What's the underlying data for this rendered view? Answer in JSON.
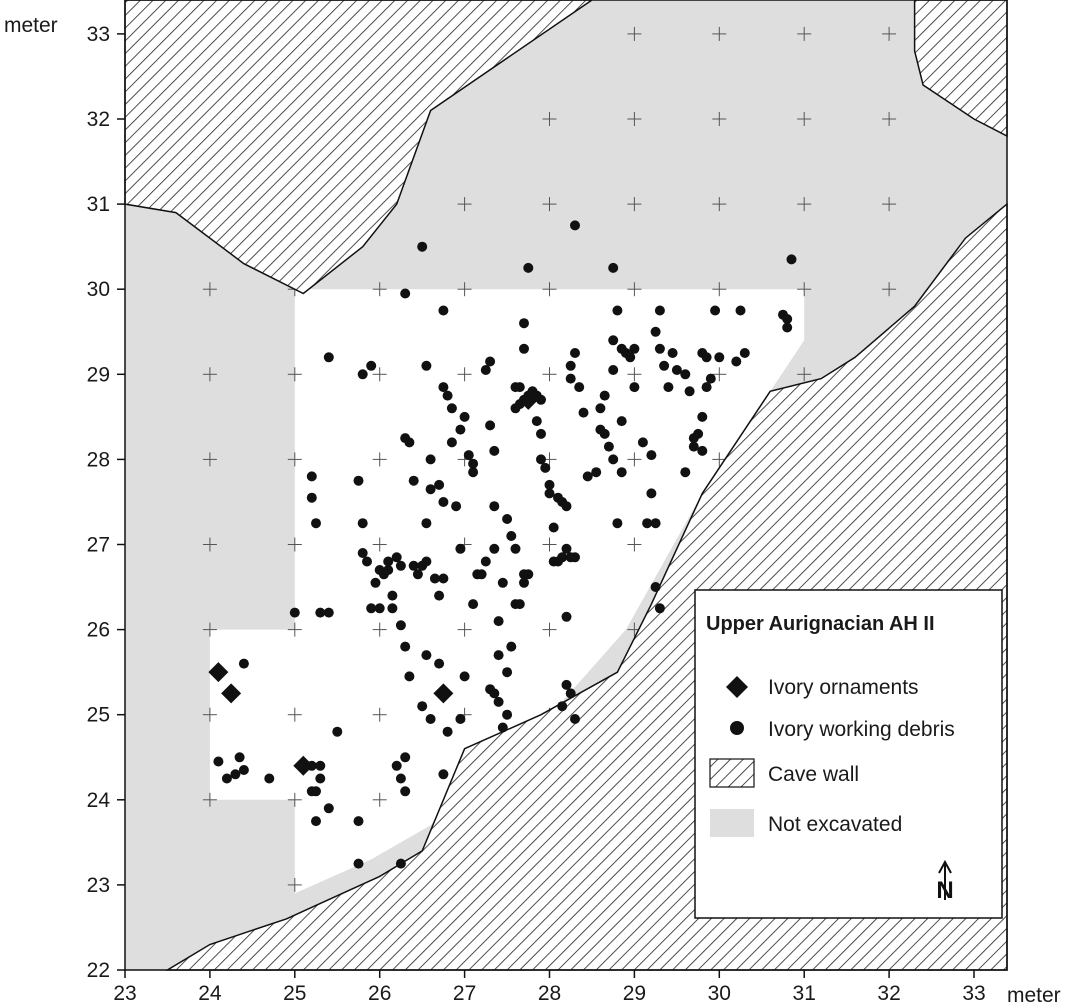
{
  "axes": {
    "x_unit": "meter",
    "y_unit": "meter",
    "x_ticks": [
      "23",
      "24",
      "25",
      "26",
      "27",
      "28",
      "29",
      "30",
      "31",
      "32",
      "33"
    ],
    "y_ticks": [
      "22",
      "23",
      "24",
      "25",
      "26",
      "27",
      "28",
      "29",
      "30",
      "31",
      "32",
      "33"
    ],
    "x_range": [
      23,
      33.4
    ],
    "y_range": [
      22,
      33.4
    ]
  },
  "legend": {
    "title": "Upper Aurignacian AH II",
    "items": [
      {
        "label": "Ivory ornaments",
        "symbol": "diamond"
      },
      {
        "label": "Ivory working debris",
        "symbol": "circle"
      },
      {
        "label": "Cave wall",
        "symbol": "hatch"
      },
      {
        "label": "Not excavated",
        "symbol": "gray"
      }
    ],
    "placement": "bottom-right"
  },
  "north_arrow": {
    "label": "N"
  },
  "colors": {
    "not_excavated": "#dedede",
    "excavated": "#ffffff",
    "symbols": "#111111",
    "hatch": "#222222"
  },
  "areas": {
    "excavated": [
      [
        25,
        30
      ],
      [
        31,
        30
      ],
      [
        31,
        29.4
      ],
      [
        29.8,
        27.6
      ],
      [
        28.9,
        26
      ],
      [
        28.1,
        25.1
      ],
      [
        27.2,
        24.5
      ],
      [
        26.6,
        23.7
      ],
      [
        25.9,
        23.3
      ],
      [
        25,
        22.9
      ],
      [
        25,
        24
      ],
      [
        24,
        24
      ],
      [
        24,
        26
      ],
      [
        25,
        26
      ]
    ],
    "cave_wall_north": [
      [
        23,
        33.4
      ],
      [
        28.5,
        33.4
      ],
      [
        26.6,
        32.1
      ],
      [
        26.2,
        31.0
      ],
      [
        25.8,
        30.5
      ],
      [
        25.1,
        29.95
      ],
      [
        24.4,
        30.3
      ],
      [
        23.6,
        30.9
      ],
      [
        23,
        31.0
      ]
    ],
    "cave_wall_northeast": [
      [
        32.3,
        33.4
      ],
      [
        33.4,
        33.4
      ],
      [
        33.4,
        31.8
      ],
      [
        33.0,
        32.0
      ],
      [
        32.4,
        32.4
      ],
      [
        32.3,
        32.8
      ]
    ],
    "cave_wall_southeast": [
      [
        23.5,
        22
      ],
      [
        33.4,
        22
      ],
      [
        33.4,
        31.0
      ],
      [
        32.9,
        30.6
      ],
      [
        32.3,
        29.8
      ],
      [
        31.6,
        29.2
      ],
      [
        31.2,
        28.95
      ],
      [
        30.6,
        28.8
      ],
      [
        29.8,
        27.6
      ],
      [
        29.2,
        26.3
      ],
      [
        28.8,
        25.5
      ],
      [
        27.9,
        25.0
      ],
      [
        27.0,
        24.6
      ],
      [
        26.5,
        23.4
      ],
      [
        26.0,
        23.1
      ],
      [
        24.9,
        22.6
      ],
      [
        24.0,
        22.3
      ]
    ]
  },
  "grid_crosses": [
    [
      29,
      33
    ],
    [
      30,
      33
    ],
    [
      31,
      33
    ],
    [
      32,
      33
    ],
    [
      28,
      32
    ],
    [
      29,
      32
    ],
    [
      30,
      32
    ],
    [
      31,
      32
    ],
    [
      32,
      32
    ],
    [
      27,
      31
    ],
    [
      28,
      31
    ],
    [
      29,
      31
    ],
    [
      30,
      31
    ],
    [
      31,
      31
    ],
    [
      32,
      31
    ],
    [
      24,
      30
    ],
    [
      25,
      30
    ],
    [
      26,
      30
    ],
    [
      27,
      30
    ],
    [
      28,
      30
    ],
    [
      29,
      30
    ],
    [
      30,
      30
    ],
    [
      31,
      30
    ],
    [
      32,
      30
    ],
    [
      24,
      29
    ],
    [
      25,
      29
    ],
    [
      26,
      29
    ],
    [
      27,
      29
    ],
    [
      28,
      29
    ],
    [
      29,
      29
    ],
    [
      30,
      29
    ],
    [
      31,
      29
    ],
    [
      24,
      28
    ],
    [
      25,
      28
    ],
    [
      26,
      28
    ],
    [
      27,
      28
    ],
    [
      28,
      28
    ],
    [
      29,
      28
    ],
    [
      30,
      28
    ],
    [
      24,
      27
    ],
    [
      25,
      27
    ],
    [
      26,
      27
    ],
    [
      27,
      27
    ],
    [
      28,
      27
    ],
    [
      29,
      27
    ],
    [
      24,
      26
    ],
    [
      25,
      26
    ],
    [
      26,
      26
    ],
    [
      27,
      26
    ],
    [
      28,
      26
    ],
    [
      29,
      26
    ],
    [
      24,
      25
    ],
    [
      25,
      25
    ],
    [
      26,
      25
    ],
    [
      27,
      25
    ],
    [
      28,
      25
    ],
    [
      24,
      24
    ],
    [
      25,
      24
    ],
    [
      26,
      24
    ],
    [
      27,
      24
    ],
    [
      25,
      23
    ],
    [
      26,
      23
    ]
  ],
  "chart_data": {
    "type": "scatter",
    "xlabel": "meter",
    "ylabel": "meter",
    "xlim": [
      23,
      33
    ],
    "ylim": [
      22,
      33
    ],
    "grid": false,
    "series": [
      {
        "name": "Ivory ornaments",
        "marker": "diamond",
        "points": [
          [
            24.1,
            25.5
          ],
          [
            24.25,
            25.25
          ],
          [
            25.1,
            24.4
          ],
          [
            26.75,
            25.25
          ],
          [
            27.75,
            28.7
          ]
        ]
      },
      {
        "name": "Ivory working debris",
        "marker": "circle",
        "points": [
          [
            24.1,
            24.45
          ],
          [
            24.2,
            24.25
          ],
          [
            24.3,
            24.3
          ],
          [
            24.35,
            24.5
          ],
          [
            24.4,
            24.35
          ],
          [
            24.4,
            25.6
          ],
          [
            24.7,
            24.25
          ],
          [
            25.0,
            26.2
          ],
          [
            25.2,
            24.1
          ],
          [
            25.2,
            24.4
          ],
          [
            25.25,
            24.1
          ],
          [
            25.3,
            24.25
          ],
          [
            25.3,
            24.4
          ],
          [
            25.4,
            23.9
          ],
          [
            25.5,
            24.8
          ],
          [
            25.25,
            23.75
          ],
          [
            25.2,
            27.8
          ],
          [
            25.2,
            27.55
          ],
          [
            25.25,
            27.25
          ],
          [
            25.3,
            26.2
          ],
          [
            25.4,
            26.2
          ],
          [
            25.4,
            29.2
          ],
          [
            25.75,
            23.75
          ],
          [
            25.75,
            23.25
          ],
          [
            25.75,
            27.75
          ],
          [
            25.8,
            27.25
          ],
          [
            25.8,
            26.9
          ],
          [
            25.8,
            29.0
          ],
          [
            25.9,
            29.1
          ],
          [
            25.85,
            26.8
          ],
          [
            25.9,
            26.25
          ],
          [
            25.95,
            26.55
          ],
          [
            26.0,
            26.7
          ],
          [
            26.0,
            26.25
          ],
          [
            26.05,
            26.65
          ],
          [
            26.1,
            26.8
          ],
          [
            26.1,
            26.7
          ],
          [
            26.15,
            26.4
          ],
          [
            26.15,
            26.25
          ],
          [
            26.2,
            26.85
          ],
          [
            26.25,
            26.75
          ],
          [
            26.25,
            26.05
          ],
          [
            26.3,
            25.8
          ],
          [
            26.2,
            24.4
          ],
          [
            26.25,
            24.25
          ],
          [
            26.3,
            24.1
          ],
          [
            26.3,
            24.5
          ],
          [
            26.25,
            23.25
          ],
          [
            26.35,
            25.45
          ],
          [
            26.4,
            26.75
          ],
          [
            26.45,
            26.65
          ],
          [
            26.5,
            26.75
          ],
          [
            26.55,
            26.8
          ],
          [
            26.55,
            27.25
          ],
          [
            26.6,
            27.65
          ],
          [
            26.7,
            27.7
          ],
          [
            26.75,
            27.5
          ],
          [
            26.3,
            28.25
          ],
          [
            26.35,
            28.2
          ],
          [
            26.4,
            27.75
          ],
          [
            26.3,
            29.95
          ],
          [
            26.5,
            30.5
          ],
          [
            26.55,
            29.1
          ],
          [
            26.6,
            28.0
          ],
          [
            26.5,
            25.1
          ],
          [
            26.55,
            25.7
          ],
          [
            26.6,
            24.95
          ],
          [
            26.65,
            26.6
          ],
          [
            26.7,
            26.4
          ],
          [
            26.75,
            26.6
          ],
          [
            26.7,
            25.6
          ],
          [
            26.75,
            24.3
          ],
          [
            26.8,
            24.8
          ],
          [
            26.75,
            29.75
          ],
          [
            26.75,
            28.85
          ],
          [
            26.8,
            28.75
          ],
          [
            26.85,
            28.6
          ],
          [
            26.85,
            28.2
          ],
          [
            26.9,
            27.45
          ],
          [
            26.95,
            26.95
          ],
          [
            26.95,
            28.35
          ],
          [
            26.95,
            24.95
          ],
          [
            27.0,
            25.45
          ],
          [
            27.0,
            28.5
          ],
          [
            27.05,
            28.05
          ],
          [
            27.1,
            27.95
          ],
          [
            27.1,
            27.85
          ],
          [
            27.1,
            26.3
          ],
          [
            27.15,
            26.65
          ],
          [
            27.2,
            26.65
          ],
          [
            27.25,
            26.8
          ],
          [
            27.25,
            29.05
          ],
          [
            27.3,
            29.15
          ],
          [
            27.3,
            28.4
          ],
          [
            27.35,
            28.1
          ],
          [
            27.35,
            27.45
          ],
          [
            27.35,
            26.95
          ],
          [
            27.4,
            26.1
          ],
          [
            27.4,
            25.7
          ],
          [
            27.45,
            26.55
          ],
          [
            27.3,
            25.3
          ],
          [
            27.35,
            25.25
          ],
          [
            27.4,
            25.15
          ],
          [
            27.45,
            24.85
          ],
          [
            27.5,
            25.0
          ],
          [
            27.5,
            25.5
          ],
          [
            27.55,
            25.8
          ],
          [
            27.5,
            27.3
          ],
          [
            27.55,
            27.1
          ],
          [
            27.6,
            26.95
          ],
          [
            27.6,
            26.3
          ],
          [
            27.65,
            26.3
          ],
          [
            27.7,
            26.65
          ],
          [
            27.7,
            26.55
          ],
          [
            27.75,
            26.65
          ],
          [
            27.6,
            28.6
          ],
          [
            27.65,
            28.65
          ],
          [
            27.7,
            28.7
          ],
          [
            27.75,
            28.75
          ],
          [
            27.8,
            28.8
          ],
          [
            27.85,
            28.75
          ],
          [
            27.9,
            28.7
          ],
          [
            27.6,
            28.85
          ],
          [
            27.65,
            28.85
          ],
          [
            27.7,
            29.3
          ],
          [
            27.75,
            30.25
          ],
          [
            27.7,
            29.6
          ],
          [
            27.85,
            28.45
          ],
          [
            27.9,
            28.3
          ],
          [
            27.9,
            28.0
          ],
          [
            27.95,
            27.9
          ],
          [
            28.0,
            27.7
          ],
          [
            28.0,
            27.6
          ],
          [
            28.05,
            27.2
          ],
          [
            28.1,
            27.55
          ],
          [
            28.15,
            27.5
          ],
          [
            28.2,
            27.45
          ],
          [
            28.15,
            26.85
          ],
          [
            28.2,
            26.95
          ],
          [
            28.25,
            26.85
          ],
          [
            28.3,
            26.85
          ],
          [
            28.05,
            26.8
          ],
          [
            28.1,
            26.8
          ],
          [
            28.2,
            26.15
          ],
          [
            28.25,
            25.25
          ],
          [
            28.2,
            25.35
          ],
          [
            28.15,
            25.1
          ],
          [
            28.3,
            24.95
          ],
          [
            28.25,
            28.95
          ],
          [
            28.3,
            29.25
          ],
          [
            28.35,
            28.85
          ],
          [
            28.4,
            28.55
          ],
          [
            28.45,
            27.8
          ],
          [
            28.55,
            27.85
          ],
          [
            28.6,
            28.6
          ],
          [
            28.65,
            28.75
          ],
          [
            28.3,
            30.75
          ],
          [
            28.25,
            29.1
          ],
          [
            28.75,
            29.4
          ],
          [
            28.85,
            29.3
          ],
          [
            28.9,
            29.25
          ],
          [
            28.95,
            29.2
          ],
          [
            29.0,
            29.3
          ],
          [
            28.75,
            30.25
          ],
          [
            28.8,
            29.75
          ],
          [
            29.0,
            28.85
          ],
          [
            29.1,
            28.2
          ],
          [
            29.15,
            27.25
          ],
          [
            29.2,
            27.6
          ],
          [
            29.3,
            29.75
          ],
          [
            29.25,
            29.5
          ],
          [
            29.3,
            29.3
          ],
          [
            29.35,
            29.1
          ],
          [
            29.4,
            28.85
          ],
          [
            29.45,
            29.25
          ],
          [
            29.5,
            29.05
          ],
          [
            29.6,
            29.0
          ],
          [
            29.65,
            28.8
          ],
          [
            29.7,
            28.25
          ],
          [
            29.75,
            28.3
          ],
          [
            29.7,
            28.15
          ],
          [
            29.8,
            28.5
          ],
          [
            29.8,
            29.25
          ],
          [
            29.85,
            29.2
          ],
          [
            29.95,
            29.75
          ],
          [
            29.85,
            28.85
          ],
          [
            29.9,
            28.95
          ],
          [
            29.8,
            28.1
          ],
          [
            29.6,
            27.85
          ],
          [
            29.25,
            26.5
          ],
          [
            29.3,
            26.25
          ],
          [
            29.25,
            27.25
          ],
          [
            28.8,
            27.25
          ],
          [
            28.65,
            28.3
          ],
          [
            28.7,
            28.15
          ],
          [
            28.75,
            28.0
          ],
          [
            28.85,
            27.85
          ],
          [
            30.0,
            29.2
          ],
          [
            30.2,
            29.15
          ],
          [
            30.3,
            29.25
          ],
          [
            30.25,
            29.75
          ],
          [
            30.75,
            29.7
          ],
          [
            30.8,
            29.65
          ],
          [
            30.8,
            29.55
          ],
          [
            30.85,
            30.35
          ],
          [
            28.75,
            29.05
          ],
          [
            28.85,
            28.45
          ],
          [
            28.6,
            28.35
          ],
          [
            29.2,
            28.05
          ]
        ]
      }
    ]
  }
}
